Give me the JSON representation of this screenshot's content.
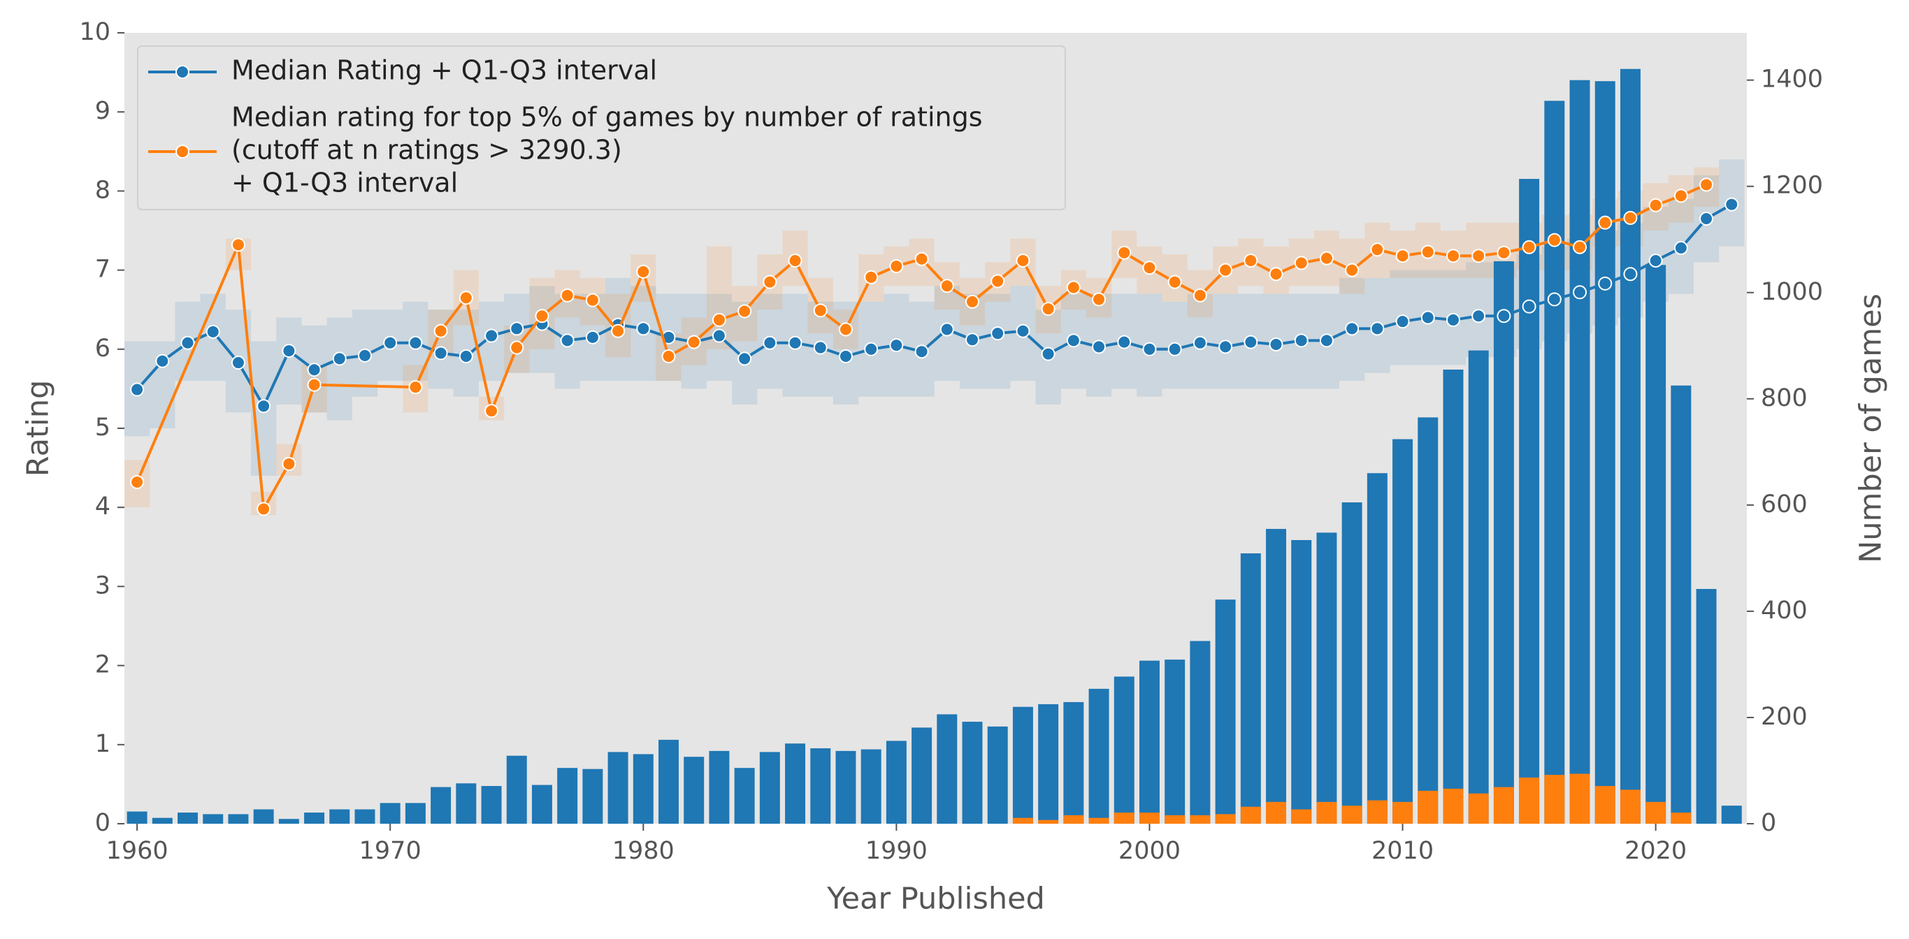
{
  "chart_data": {
    "type": "combo",
    "xlabel": "Year Published",
    "ylabel": "Rating",
    "y2label": "Number of games",
    "xlim": [
      1959.5,
      2023.6
    ],
    "xticks": [
      1960,
      1970,
      1980,
      1990,
      2000,
      2010,
      2020
    ],
    "ylim": [
      0,
      10
    ],
    "yticks": [
      0,
      1,
      2,
      3,
      4,
      5,
      6,
      7,
      8,
      9,
      10
    ],
    "y2lim": [
      0,
      1489
    ],
    "y2ticks": [
      0,
      200,
      400,
      600,
      800,
      1000,
      1200,
      1400
    ],
    "legend": "upper left",
    "x": [
      1960,
      1961,
      1962,
      1963,
      1964,
      1965,
      1966,
      1967,
      1968,
      1969,
      1970,
      1971,
      1972,
      1973,
      1974,
      1975,
      1976,
      1977,
      1978,
      1979,
      1980,
      1981,
      1982,
      1983,
      1984,
      1985,
      1986,
      1987,
      1988,
      1989,
      1990,
      1991,
      1992,
      1993,
      1994,
      1995,
      1996,
      1997,
      1998,
      1999,
      2000,
      2001,
      2002,
      2003,
      2004,
      2005,
      2006,
      2007,
      2008,
      2009,
      2010,
      2011,
      2012,
      2013,
      2014,
      2015,
      2016,
      2017,
      2018,
      2019,
      2020,
      2021,
      2022,
      2023
    ],
    "series": [
      {
        "type": "bar",
        "axis": "y2",
        "color": "#1f77b4",
        "values": [
          23,
          11,
          21,
          18,
          18,
          27,
          9,
          21,
          27,
          27,
          39,
          39,
          69,
          76,
          71,
          128,
          73,
          105,
          103,
          135,
          131,
          158,
          126,
          137,
          105,
          135,
          151,
          142,
          137,
          140,
          156,
          181,
          206,
          192,
          183,
          220,
          225,
          229,
          254,
          277,
          307,
          309,
          344,
          422,
          509,
          555,
          534,
          548,
          605,
          660,
          724,
          765,
          855,
          891,
          1059,
          1214,
          1361,
          1400,
          1398,
          1421,
          1052,
          825,
          442,
          34
        ]
      },
      {
        "type": "bar",
        "axis": "y2",
        "color": "#ff7f0e",
        "values": [
          0,
          0,
          0,
          0,
          0,
          0,
          0,
          0,
          0,
          0,
          0,
          0,
          0,
          0,
          0,
          0,
          0,
          0,
          0,
          0,
          0,
          0,
          0,
          0,
          0,
          0,
          0,
          0,
          0,
          0,
          0,
          0,
          0,
          0,
          0,
          11,
          7,
          16,
          11,
          21,
          21,
          16,
          16,
          18,
          32,
          41,
          27,
          41,
          34,
          44,
          41,
          62,
          66,
          57,
          69,
          87,
          92,
          94,
          71,
          64,
          41,
          21,
          0,
          0
        ]
      },
      {
        "type": "line",
        "name": [
          "Median Rating + Q1-Q3 interval"
        ],
        "color": "#1f77b4",
        "values": [
          5.49,
          5.85,
          6.08,
          6.22,
          5.83,
          5.28,
          5.98,
          5.74,
          5.88,
          5.92,
          6.08,
          6.08,
          5.95,
          5.91,
          6.17,
          6.26,
          6.32,
          6.11,
          6.15,
          6.31,
          6.26,
          6.15,
          6.09,
          6.17,
          5.88,
          6.08,
          6.08,
          6.02,
          5.91,
          6.0,
          6.05,
          5.97,
          6.25,
          6.12,
          6.2,
          6.23,
          5.94,
          6.11,
          6.03,
          6.09,
          6.0,
          6.0,
          6.08,
          6.03,
          6.09,
          6.06,
          6.11,
          6.11,
          6.26,
          6.26,
          6.35,
          6.4,
          6.37,
          6.42,
          6.42,
          6.54,
          6.63,
          6.72,
          6.83,
          6.95,
          7.12,
          7.28,
          7.65,
          7.83
        ],
        "q1": [
          4.9,
          5.0,
          5.6,
          5.6,
          5.2,
          4.4,
          5.3,
          5.2,
          5.1,
          5.4,
          5.6,
          5.6,
          5.5,
          5.4,
          5.6,
          5.7,
          5.7,
          5.5,
          5.6,
          5.6,
          5.6,
          5.6,
          5.5,
          5.6,
          5.3,
          5.5,
          5.4,
          5.4,
          5.3,
          5.4,
          5.4,
          5.4,
          5.6,
          5.5,
          5.5,
          5.6,
          5.3,
          5.5,
          5.4,
          5.5,
          5.4,
          5.5,
          5.5,
          5.5,
          5.5,
          5.5,
          5.5,
          5.5,
          5.6,
          5.7,
          5.8,
          5.8,
          5.8,
          5.9,
          5.9,
          6.0,
          6.1,
          6.2,
          6.3,
          6.4,
          6.6,
          6.7,
          7.1,
          7.3
        ],
        "q3": [
          6.1,
          6.1,
          6.6,
          6.7,
          6.5,
          6.1,
          6.4,
          6.3,
          6.4,
          6.5,
          6.5,
          6.6,
          6.5,
          6.5,
          6.6,
          6.7,
          6.8,
          6.7,
          6.7,
          6.9,
          6.8,
          6.7,
          6.7,
          6.7,
          6.6,
          6.7,
          6.7,
          6.6,
          6.6,
          6.6,
          6.7,
          6.6,
          6.8,
          6.7,
          6.7,
          6.8,
          6.5,
          6.7,
          6.7,
          6.7,
          6.7,
          6.6,
          6.7,
          6.7,
          6.7,
          6.7,
          6.7,
          6.7,
          6.9,
          6.9,
          7.0,
          7.0,
          7.0,
          7.1,
          7.1,
          7.2,
          7.3,
          7.4,
          7.5,
          7.6,
          7.8,
          7.9,
          8.2,
          8.4
        ]
      },
      {
        "type": "line",
        "name": [
          "Median rating for top 5% of games by number of ratings",
          "(cutoff at n ratings > 3290.3)",
          "+ Q1-Q3 interval"
        ],
        "color": "#ff7f0e",
        "x": [
          1960,
          1964,
          1965,
          1966,
          1967,
          1971,
          1972,
          1973,
          1974,
          1975,
          1976,
          1977,
          1978,
          1979,
          1980,
          1981,
          1982,
          1983,
          1984,
          1985,
          1986,
          1987,
          1988,
          1989,
          1990,
          1991,
          1992,
          1993,
          1994,
          1995,
          1996,
          1997,
          1998,
          1999,
          2000,
          2001,
          2002,
          2003,
          2004,
          2005,
          2006,
          2007,
          2008,
          2009,
          2010,
          2011,
          2012,
          2013,
          2014,
          2015,
          2016,
          2017,
          2018,
          2019,
          2020,
          2021,
          2022
        ],
        "values": [
          4.32,
          7.32,
          3.98,
          4.55,
          5.55,
          5.52,
          6.23,
          6.65,
          5.22,
          6.02,
          6.42,
          6.68,
          6.62,
          6.23,
          6.98,
          5.91,
          6.09,
          6.37,
          6.48,
          6.85,
          7.12,
          6.49,
          6.25,
          6.91,
          7.05,
          7.14,
          6.8,
          6.6,
          6.86,
          7.12,
          6.51,
          6.78,
          6.63,
          7.22,
          7.03,
          6.85,
          6.68,
          7.0,
          7.12,
          6.95,
          7.09,
          7.15,
          7.0,
          7.26,
          7.18,
          7.23,
          7.18,
          7.18,
          7.22,
          7.29,
          7.38,
          7.29,
          7.6,
          7.66,
          7.82,
          7.94,
          8.08
        ],
        "q1": [
          4.0,
          7.0,
          3.9,
          4.4,
          5.2,
          5.2,
          5.9,
          6.3,
          5.1,
          5.7,
          6.0,
          6.4,
          6.3,
          5.9,
          6.6,
          5.6,
          5.8,
          6.0,
          6.1,
          6.5,
          6.8,
          6.2,
          6.0,
          6.6,
          6.8,
          6.8,
          6.5,
          6.3,
          6.6,
          6.8,
          6.2,
          6.5,
          6.4,
          6.9,
          6.7,
          6.6,
          6.4,
          6.7,
          6.8,
          6.7,
          6.8,
          6.8,
          6.7,
          6.9,
          6.9,
          6.9,
          6.9,
          6.9,
          6.9,
          7.0,
          7.0,
          7.0,
          7.3,
          7.3,
          7.5,
          7.6,
          7.8
        ],
        "q3": [
          4.6,
          7.4,
          4.2,
          4.8,
          5.8,
          5.8,
          6.5,
          7.0,
          5.4,
          6.3,
          6.9,
          7.0,
          6.9,
          6.7,
          7.2,
          6.2,
          6.4,
          7.3,
          6.8,
          7.2,
          7.5,
          6.9,
          6.5,
          7.2,
          7.3,
          7.4,
          7.1,
          6.9,
          7.1,
          7.4,
          6.8,
          7.0,
          6.9,
          7.5,
          7.3,
          7.2,
          7.0,
          7.3,
          7.4,
          7.3,
          7.4,
          7.5,
          7.4,
          7.6,
          7.5,
          7.6,
          7.5,
          7.6,
          7.6,
          7.6,
          7.7,
          7.7,
          7.9,
          8.0,
          8.1,
          8.2,
          8.3
        ]
      }
    ]
  }
}
